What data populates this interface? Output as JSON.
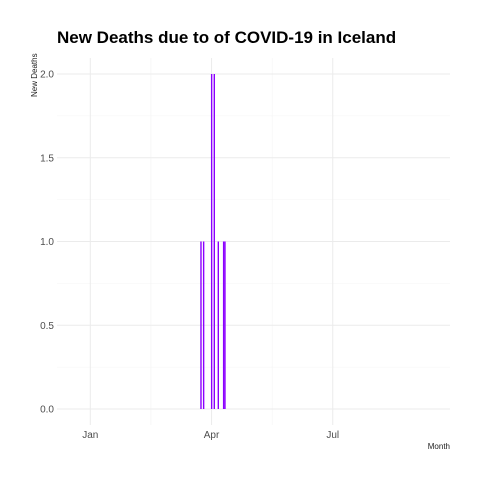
{
  "chart_data": {
    "type": "bar",
    "title": "New Deaths due to of COVID-19 in Iceland",
    "xlabel": "Month",
    "ylabel": "New Deaths",
    "x_axis": {
      "kind": "date",
      "range": [
        "2019-12-07",
        "2020-09-27"
      ],
      "ticks": [
        {
          "date": "2020-01-01",
          "label": "Jan"
        },
        {
          "date": "2020-04-01",
          "label": "Apr"
        },
        {
          "date": "2020-07-01",
          "label": "Jul"
        }
      ]
    },
    "ylim": [
      0,
      2
    ],
    "y_ticks": [
      {
        "value": 0,
        "label": "0.0"
      },
      {
        "value": 0.5,
        "label": "0.5"
      },
      {
        "value": 1,
        "label": "1.0"
      },
      {
        "value": 1.5,
        "label": "1.5"
      },
      {
        "value": 2,
        "label": "2.0"
      }
    ],
    "grid": true,
    "bar_color": "#8b00ff",
    "series": [
      {
        "points": [
          {
            "date": "2020-03-24",
            "value": 1
          },
          {
            "date": "2020-03-26",
            "value": 1
          },
          {
            "date": "2020-04-01",
            "value": 2
          },
          {
            "date": "2020-04-03",
            "value": 2
          },
          {
            "date": "2020-04-06",
            "value": 1
          },
          {
            "date": "2020-04-10",
            "value": 1
          },
          {
            "date": "2020-04-11",
            "value": 1
          }
        ]
      }
    ]
  }
}
